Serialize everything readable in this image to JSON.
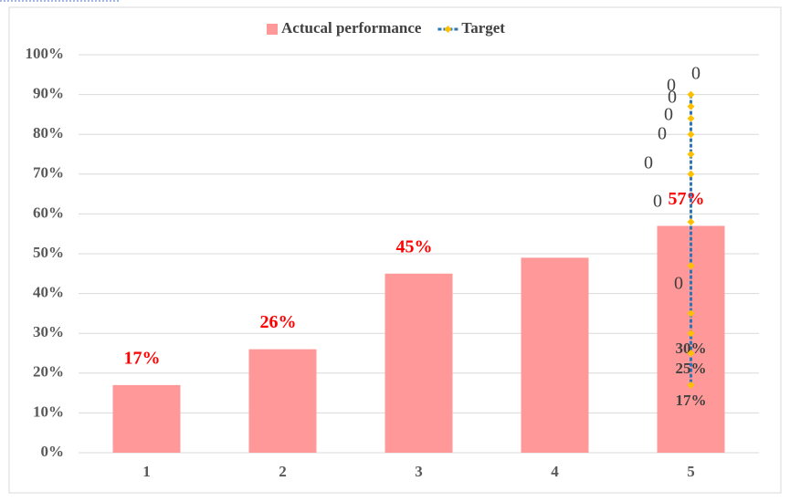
{
  "chart_data": {
    "type": "bar",
    "categories": [
      "1",
      "2",
      "3",
      "4",
      "5"
    ],
    "grid": true,
    "legend": "top",
    "ylim": [
      0,
      100
    ],
    "yticks": [
      {
        "value": 0,
        "label": "0%"
      },
      {
        "value": 10,
        "label": "10%"
      },
      {
        "value": 20,
        "label": "20%"
      },
      {
        "value": 30,
        "label": "30%"
      },
      {
        "value": 40,
        "label": "40%"
      },
      {
        "value": 50,
        "label": "50%"
      },
      {
        "value": 60,
        "label": "60%"
      },
      {
        "value": 70,
        "label": "70%"
      },
      {
        "value": 80,
        "label": "80%"
      },
      {
        "value": 90,
        "label": "90%"
      },
      {
        "value": 100,
        "label": "100%"
      }
    ],
    "series": [
      {
        "name": "Actucal performance",
        "type": "bar",
        "color": "#ff9999",
        "values": [
          17,
          26,
          45,
          49,
          57
        ],
        "value_labels": [
          "17%",
          "26%",
          "45%",
          null,
          "57%"
        ]
      },
      {
        "name": "Target",
        "type": "line",
        "color": "#2e75b6",
        "marker_color": "#ffc000",
        "x": [
          "5",
          "5",
          "5",
          "5",
          "5",
          "5",
          "5",
          "5",
          "5",
          "5",
          "5",
          "5"
        ],
        "values": [
          90,
          87,
          84,
          80,
          75,
          70,
          58,
          47,
          35,
          30,
          25,
          17
        ],
        "value_labels": [
          null,
          null,
          null,
          null,
          null,
          null,
          null,
          null,
          null,
          "30%",
          "25%",
          "17%"
        ]
      }
    ],
    "annotations": [
      "0",
      "0",
      "0",
      "0",
      "0",
      "0",
      "0",
      "0"
    ]
  }
}
